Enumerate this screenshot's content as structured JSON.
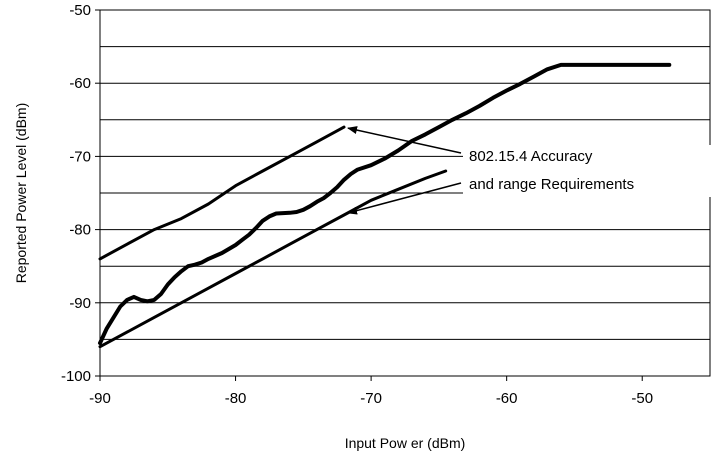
{
  "chart_data": {
    "type": "line",
    "title": "",
    "xlabel": "Input Pow er (dBm)",
    "ylabel": "Reported Power Level (dBm)",
    "xlim": [
      -90,
      -45
    ],
    "ylim": [
      -100,
      -50
    ],
    "x_ticks": [
      -90,
      -80,
      -70,
      -60,
      -50
    ],
    "x_tick_labels": [
      "-90",
      "-80",
      "-70",
      "-60",
      "-50"
    ],
    "y_ticks": [
      -100,
      -90,
      -80,
      -70,
      -60,
      -50
    ],
    "y_tick_labels": [
      "-100",
      "-90",
      "-80",
      "-70",
      "-60",
      "-50"
    ],
    "y_gridlines": [
      -95,
      -90,
      -85,
      -80,
      -75,
      -70,
      -65,
      -60,
      -55,
      -50
    ],
    "grid": "horizontal",
    "legend": "none",
    "series": [
      {
        "style": "thick",
        "points": [
          [
            -90,
            -95.5
          ],
          [
            -89.5,
            -93.5
          ],
          [
            -88.5,
            -90.5
          ],
          [
            -88,
            -89.6
          ],
          [
            -87.5,
            -89.2
          ],
          [
            -87,
            -89.6
          ],
          [
            -86.5,
            -89.8
          ],
          [
            -86,
            -89.6
          ],
          [
            -85.5,
            -88.8
          ],
          [
            -85,
            -87.5
          ],
          [
            -84.5,
            -86.5
          ],
          [
            -84,
            -85.7
          ],
          [
            -83.5,
            -85
          ],
          [
            -83,
            -84.8
          ],
          [
            -82.5,
            -84.5
          ],
          [
            -82,
            -84
          ],
          [
            -81,
            -83.2
          ],
          [
            -80,
            -82.1
          ],
          [
            -79.5,
            -81.4
          ],
          [
            -79,
            -80.7
          ],
          [
            -78.5,
            -79.8
          ],
          [
            -78,
            -78.8
          ],
          [
            -77.5,
            -78.2
          ],
          [
            -77,
            -77.8
          ],
          [
            -76,
            -77.7
          ],
          [
            -75.5,
            -77.6
          ],
          [
            -75,
            -77.3
          ],
          [
            -74.5,
            -76.8
          ],
          [
            -74,
            -76.2
          ],
          [
            -73.5,
            -75.7
          ],
          [
            -73,
            -75
          ],
          [
            -72.5,
            -74.2
          ],
          [
            -72,
            -73.2
          ],
          [
            -71.5,
            -72.4
          ],
          [
            -71,
            -71.8
          ],
          [
            -70,
            -71.2
          ],
          [
            -69,
            -70.3
          ],
          [
            -68,
            -69.2
          ],
          [
            -67,
            -67.9
          ],
          [
            -66,
            -67
          ],
          [
            -65,
            -66
          ],
          [
            -64,
            -65
          ],
          [
            -63,
            -64.1
          ],
          [
            -62,
            -63.1
          ],
          [
            -61,
            -62
          ],
          [
            -60,
            -61
          ],
          [
            -59,
            -60.1
          ],
          [
            -58,
            -59.1
          ],
          [
            -57,
            -58.1
          ],
          [
            -56,
            -57.5
          ],
          [
            -52,
            -57.5
          ],
          [
            -48,
            -57.5
          ]
        ]
      },
      {
        "style": "medium",
        "points": [
          [
            -90,
            -84
          ],
          [
            -88,
            -82
          ],
          [
            -86,
            -80
          ],
          [
            -84,
            -78.5
          ],
          [
            -82,
            -76.5
          ],
          [
            -80,
            -74
          ],
          [
            -78,
            -72
          ],
          [
            -76,
            -70
          ],
          [
            -74,
            -68
          ],
          [
            -72,
            -66
          ]
        ]
      },
      {
        "style": "medium",
        "points": [
          [
            -90,
            -96
          ],
          [
            -88,
            -94
          ],
          [
            -86,
            -92
          ],
          [
            -84,
            -90
          ],
          [
            -82,
            -88
          ],
          [
            -80,
            -86
          ],
          [
            -78,
            -84
          ],
          [
            -76,
            -82
          ],
          [
            -74,
            -80
          ],
          [
            -72,
            -78
          ],
          [
            -70,
            -76
          ],
          [
            -68,
            -74.5
          ],
          [
            -66,
            -73
          ],
          [
            -64.5,
            -72
          ]
        ]
      }
    ],
    "annotation": {
      "lines": [
        "802.15.4 Accuracy",
        "and range Requirements"
      ],
      "arrows_to": [
        [
          -72,
          -66
        ],
        [
          -72,
          -78
        ]
      ]
    }
  }
}
